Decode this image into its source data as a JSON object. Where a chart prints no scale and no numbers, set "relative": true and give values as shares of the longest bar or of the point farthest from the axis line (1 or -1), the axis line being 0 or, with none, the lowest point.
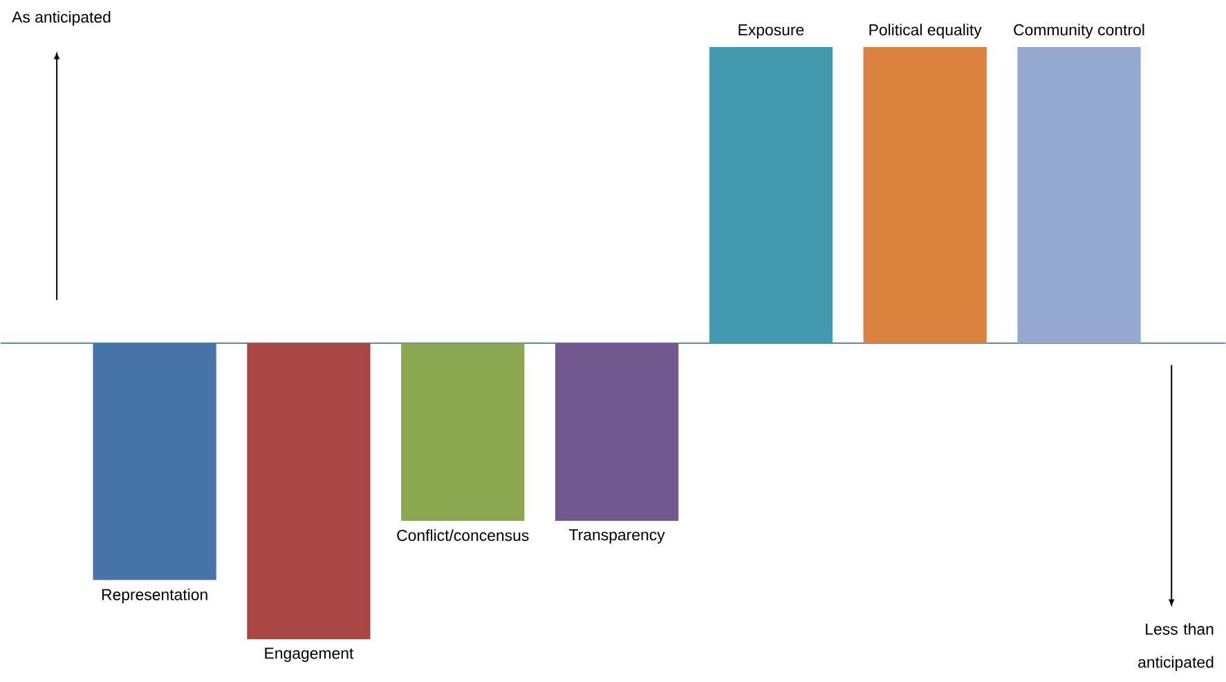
{
  "chart_data": {
    "type": "bar",
    "relative": true,
    "categories": [
      "Representation",
      "Engagement",
      "Conflict/concensus",
      "Transparency",
      "Exposure",
      "Political equality",
      "Community control"
    ],
    "values": [
      -0.8,
      -1.0,
      -0.6,
      -0.6,
      1.0,
      1.0,
      1.0
    ],
    "colors": [
      "#4674a8",
      "#aa4644",
      "#8ba74f",
      "#71598e",
      "#4399b0",
      "#db823e",
      "#94a9d0"
    ],
    "annotations": [
      "As anticipated",
      "Less than anticipated"
    ],
    "ref_lines": [
      {
        "axis": "y",
        "value": 0,
        "color": "#4472c4"
      }
    ]
  }
}
